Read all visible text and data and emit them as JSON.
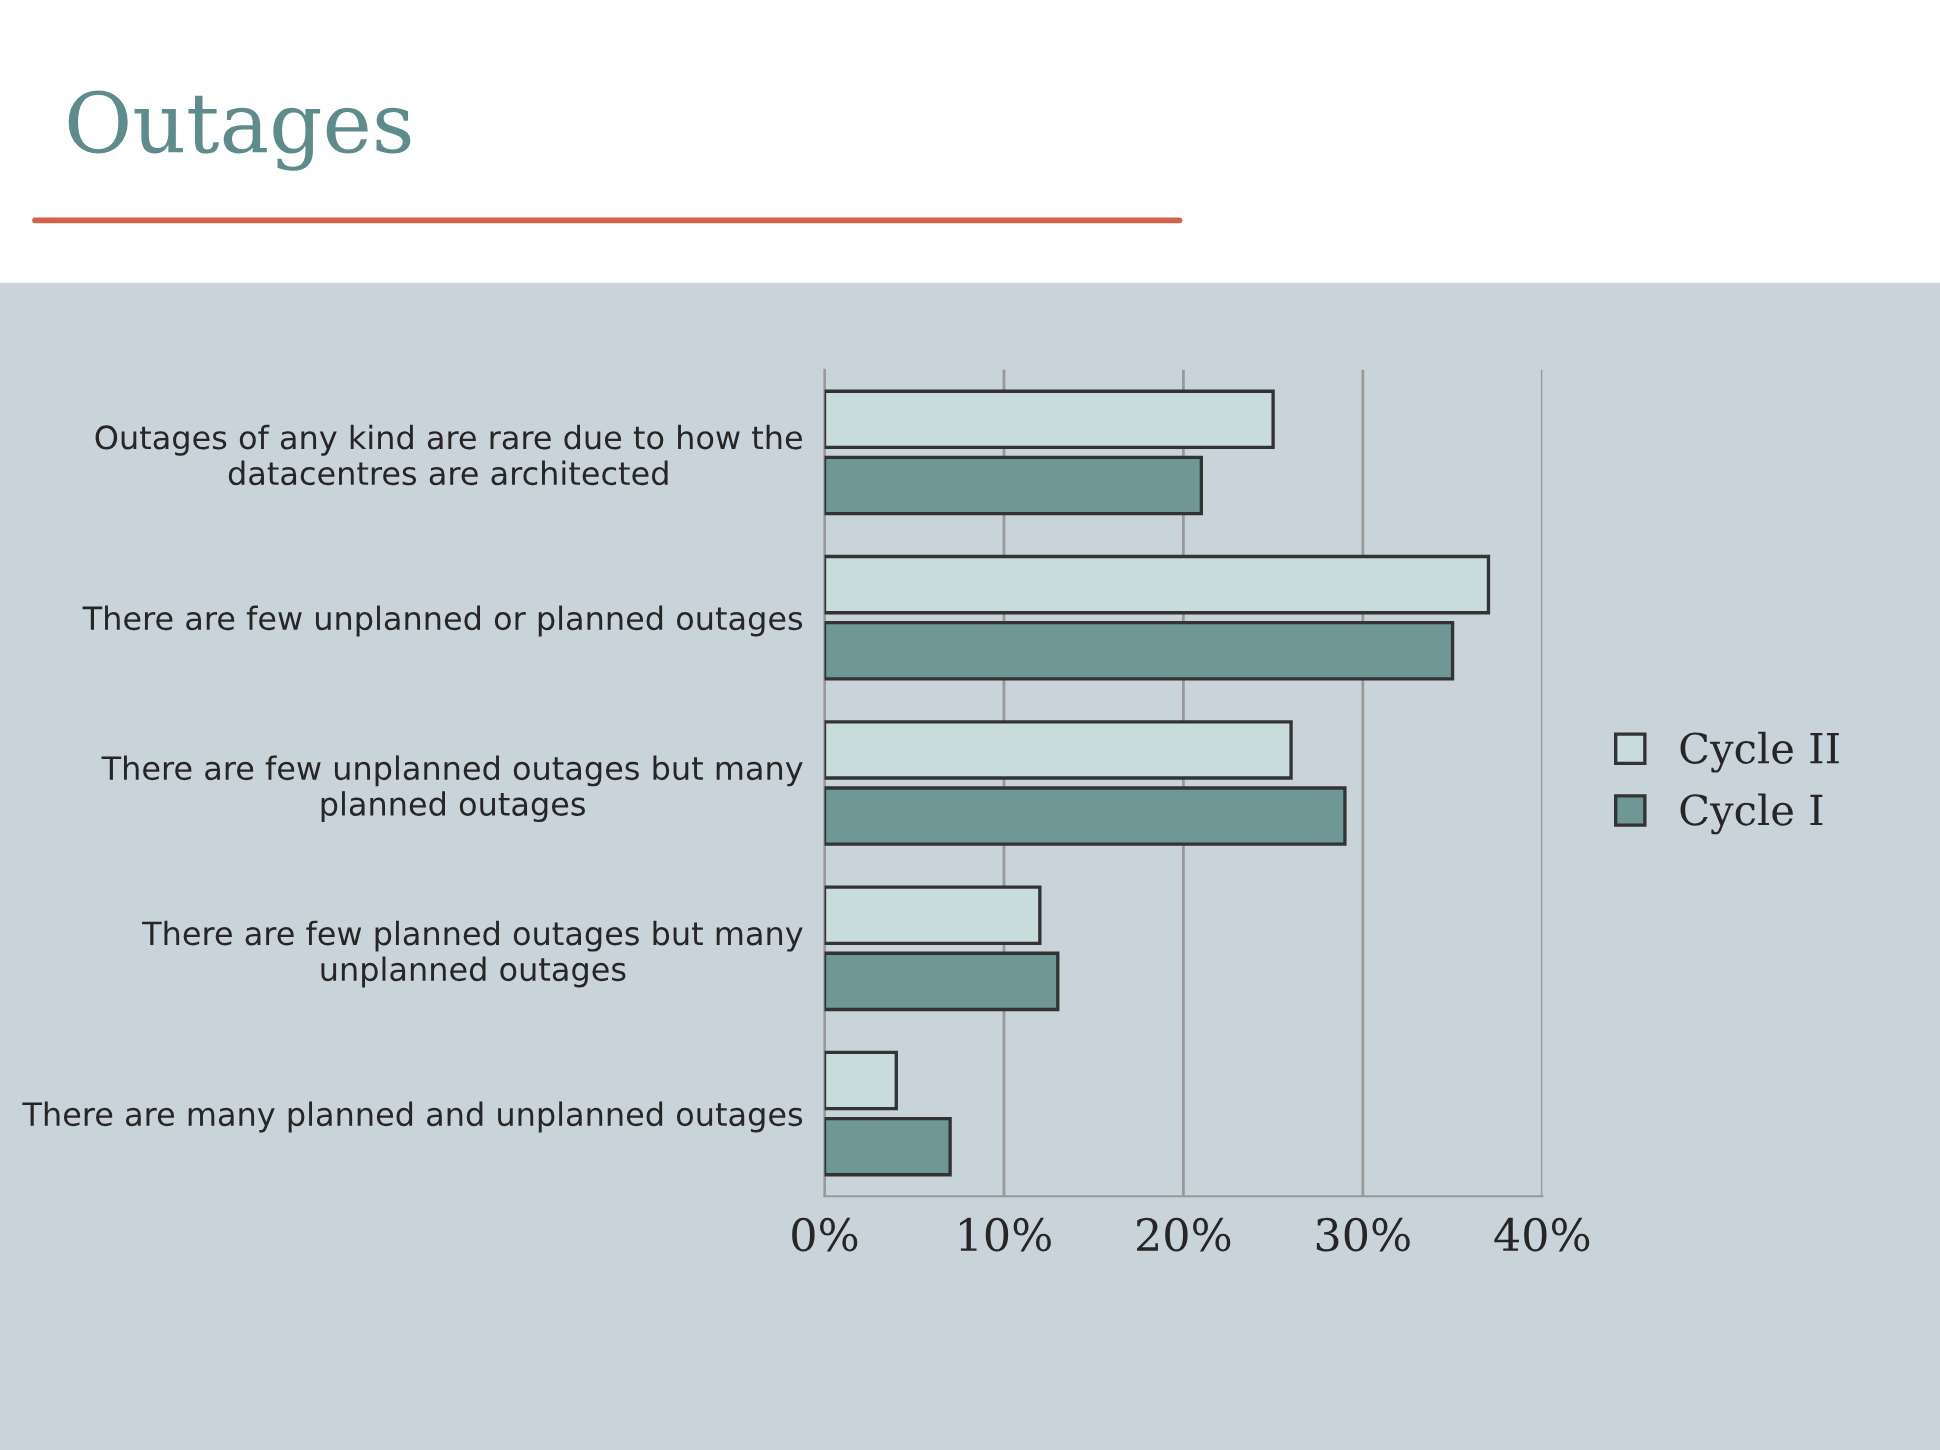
{
  "chart_data": {
    "type": "bar",
    "title": "Outages",
    "orientation": "horizontal",
    "categories": [
      "Outages of any kind are rare due to how the datacentres are architected",
      "There are few unplanned or planned outages",
      "There are few unplanned outages but many planned outages",
      "There are few planned outages but many unplanned outages",
      "There are many planned and unplanned outages"
    ],
    "series": [
      {
        "name": "Cycle II",
        "color": "#c9dcdc",
        "values": [
          25,
          37,
          26,
          12,
          4
        ]
      },
      {
        "name": "Cycle I",
        "color": "#6f9796",
        "values": [
          21,
          35,
          29,
          13,
          7
        ]
      }
    ],
    "xlim": [
      0,
      40
    ],
    "xticks": [
      {
        "value": 0,
        "label": "0%"
      },
      {
        "value": 10,
        "label": "10%"
      },
      {
        "value": 20,
        "label": "20%"
      },
      {
        "value": 30,
        "label": "30%"
      },
      {
        "value": 40,
        "label": "40%"
      }
    ],
    "grid": "x",
    "legend": "right"
  }
}
